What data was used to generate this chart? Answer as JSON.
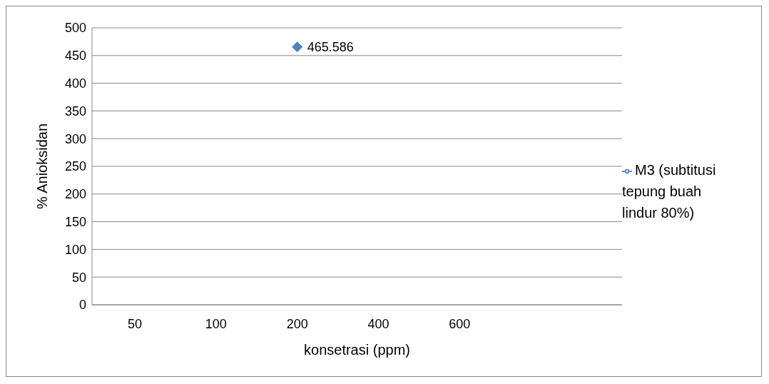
{
  "chart_data": {
    "type": "line",
    "xlabel": "konsetrasi (ppm)",
    "ylabel": "% Anioksidan",
    "categories": [
      "50",
      "100",
      "200",
      "400",
      "600",
      null,
      null
    ],
    "series": [
      {
        "name": "M3 (subtitusi tepung buah lindur 80%)",
        "color": "#4f81bd",
        "values": [
          null,
          null,
          465.586,
          null,
          null,
          null,
          null
        ]
      }
    ],
    "ylim": [
      0,
      500
    ],
    "yticks": [
      0,
      50,
      100,
      150,
      200,
      250,
      300,
      350,
      400,
      450,
      500
    ],
    "grid": "y",
    "legend": "right",
    "marker": "diamond",
    "data_labels": true
  }
}
